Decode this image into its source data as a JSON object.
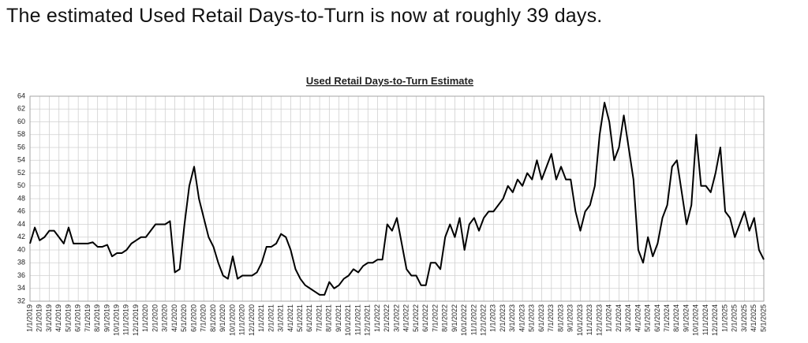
{
  "header": "The estimated Used Retail Days-to-Turn is now at roughly 39 days.",
  "chart_data": {
    "type": "line",
    "title": "Used Retail Days-to-Turn Estimate",
    "color": "#000000",
    "grid": true,
    "ylim": [
      32,
      64
    ],
    "yticks": [
      32,
      34,
      36,
      38,
      40,
      42,
      44,
      46,
      48,
      50,
      52,
      54,
      56,
      58,
      60,
      62,
      64
    ],
    "categories": [
      "1/1/2019",
      null,
      "2/1/2019",
      null,
      "3/1/2019",
      null,
      "4/1/2019",
      null,
      "5/1/2019",
      null,
      "6/1/2019",
      null,
      "7/1/2019",
      null,
      "8/1/2019",
      null,
      "9/1/2019",
      null,
      "10/1/2019",
      null,
      "11/1/2019",
      null,
      "12/1/2019",
      null,
      "1/1/2020",
      null,
      "2/1/2020",
      null,
      "3/1/2020",
      null,
      "4/1/2020",
      null,
      "5/1/2020",
      null,
      "6/1/2020",
      null,
      "7/1/2020",
      null,
      "8/1/2020",
      null,
      "9/1/2020",
      null,
      "10/1/2020",
      null,
      "11/1/2020",
      null,
      "12/1/2020",
      null,
      "1/1/2021",
      null,
      "2/1/2021",
      null,
      "3/1/2021",
      null,
      "4/1/2021",
      null,
      "5/1/2021",
      null,
      "6/1/2021",
      null,
      "7/1/2021",
      null,
      "8/1/2021",
      null,
      "9/1/2021",
      null,
      "10/1/2021",
      null,
      "11/1/2021",
      null,
      "12/1/2021",
      null,
      "1/1/2022",
      null,
      "2/1/2022",
      null,
      "3/1/2022",
      null,
      "4/1/2022",
      null,
      "5/1/2022",
      null,
      "6/1/2022",
      null,
      "7/1/2022",
      null,
      "8/1/2022",
      null,
      "9/1/2022",
      null,
      "10/1/2022",
      null,
      "11/1/2022",
      null,
      "12/1/2022",
      null,
      "1/1/2023",
      null,
      "2/1/2023",
      null,
      "3/1/2023",
      null,
      "4/1/2023",
      null,
      "5/1/2023",
      null,
      "6/1/2023",
      null,
      "7/1/2023",
      null,
      "8/1/2023",
      null,
      "9/1/2023",
      null,
      "10/1/2023",
      null,
      "11/1/2023",
      null,
      "12/1/2023",
      null,
      "1/1/2024",
      null,
      "2/1/2024",
      null,
      "3/1/2024",
      null,
      "4/1/2024",
      null,
      "5/1/2024",
      null,
      "6/1/2024",
      null,
      "7/1/2024",
      null,
      "8/1/2024",
      null,
      "9/1/2024",
      null,
      "10/1/2024",
      null,
      "11/1/2024",
      null,
      "12/1/2024",
      null,
      "1/1/2025",
      null,
      "2/1/2025",
      null,
      "3/1/2025",
      null,
      "4/1/2025",
      null,
      "5/1/2025"
    ],
    "values": [
      41,
      43.5,
      41.5,
      42,
      43,
      43,
      42,
      41,
      43.5,
      41,
      41,
      41,
      41,
      41.2,
      40.5,
      40.5,
      40.8,
      39,
      39.5,
      39.5,
      40,
      41,
      41.5,
      42,
      42,
      43,
      44,
      44,
      44,
      44.5,
      36.5,
      37,
      44,
      50,
      53,
      48,
      45,
      42,
      40.5,
      38,
      36,
      35.5,
      39,
      35.5,
      36,
      36,
      36,
      36.5,
      38,
      40.5,
      40.5,
      41,
      42.5,
      42,
      40,
      37,
      35.5,
      34.5,
      34,
      33.5,
      33,
      33,
      35,
      34,
      34.5,
      35.5,
      36,
      37,
      36.5,
      37.5,
      38,
      38,
      38.5,
      38.5,
      44,
      43,
      45,
      41,
      37,
      36,
      36,
      34.5,
      34.5,
      38,
      38,
      37,
      42,
      44,
      42,
      45,
      40,
      44,
      45,
      43,
      45,
      46,
      46,
      47,
      48,
      50,
      49,
      51,
      50,
      52,
      51,
      54,
      51,
      53,
      55,
      51,
      53,
      51,
      51,
      46,
      43,
      46,
      47,
      50,
      58,
      63,
      60,
      54,
      56,
      61,
      56,
      51,
      40,
      38,
      42,
      39,
      41,
      45,
      47,
      53,
      54,
      49,
      44,
      47,
      58,
      50,
      50,
      49,
      52,
      56,
      46,
      45,
      42,
      44,
      46,
      43,
      45,
      40,
      38.5
    ]
  }
}
